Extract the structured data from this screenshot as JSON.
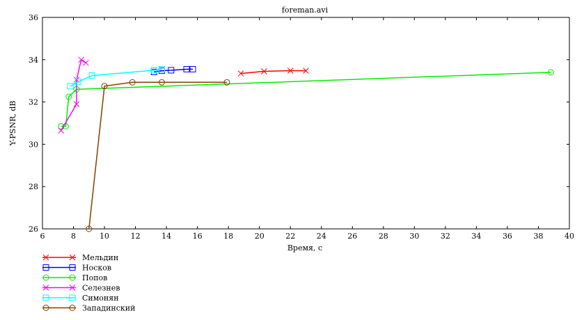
{
  "chart_data": {
    "type": "line",
    "title": "foreman.avi",
    "xlabel": "Время, с",
    "ylabel": "Y-PSNR, dB",
    "xlim": [
      6,
      40
    ],
    "ylim": [
      26,
      36
    ],
    "xticks": [
      6,
      8,
      10,
      12,
      14,
      16,
      18,
      20,
      22,
      24,
      26,
      28,
      30,
      32,
      34,
      36,
      38,
      40
    ],
    "yticks": [
      26,
      28,
      30,
      32,
      34,
      36
    ],
    "grid": false,
    "legend_position": "below-left",
    "series": [
      {
        "name": "Мельдин",
        "color": "#ff0000",
        "marker": "x",
        "points": [
          [
            18.8,
            33.35
          ],
          [
            20.3,
            33.45
          ],
          [
            22.0,
            33.48
          ],
          [
            23.0,
            33.48
          ]
        ]
      },
      {
        "name": "Носков",
        "color": "#0000ff",
        "marker": "square",
        "points": [
          [
            13.2,
            33.42
          ],
          [
            13.7,
            33.48
          ],
          [
            14.3,
            33.5
          ],
          [
            15.3,
            33.55
          ],
          [
            15.7,
            33.55
          ]
        ]
      },
      {
        "name": "Попов",
        "color": "#00ee00",
        "marker": "circle",
        "points": [
          [
            7.2,
            30.85
          ],
          [
            7.5,
            30.85
          ],
          [
            7.7,
            32.25
          ],
          [
            8.2,
            32.6
          ],
          [
            38.8,
            33.4
          ]
        ]
      },
      {
        "name": "Селезнев",
        "color": "#ff00ff",
        "marker": "x",
        "points": [
          [
            7.2,
            30.65
          ],
          [
            8.2,
            31.9
          ],
          [
            8.2,
            33.05
          ],
          [
            8.5,
            34.0
          ],
          [
            8.8,
            33.85
          ]
        ]
      },
      {
        "name": "Симонян",
        "color": "#00ffff",
        "marker": "square",
        "points": [
          [
            7.8,
            32.75
          ],
          [
            8.3,
            32.95
          ],
          [
            9.2,
            33.25
          ],
          [
            13.2,
            33.5
          ],
          [
            13.7,
            33.55
          ]
        ]
      },
      {
        "name": "Западинский",
        "color": "#804000",
        "marker": "circle",
        "points": [
          [
            9.0,
            26.0
          ],
          [
            10.0,
            32.75
          ],
          [
            11.8,
            32.93
          ],
          [
            13.7,
            32.93
          ],
          [
            17.9,
            32.93
          ]
        ]
      }
    ]
  }
}
